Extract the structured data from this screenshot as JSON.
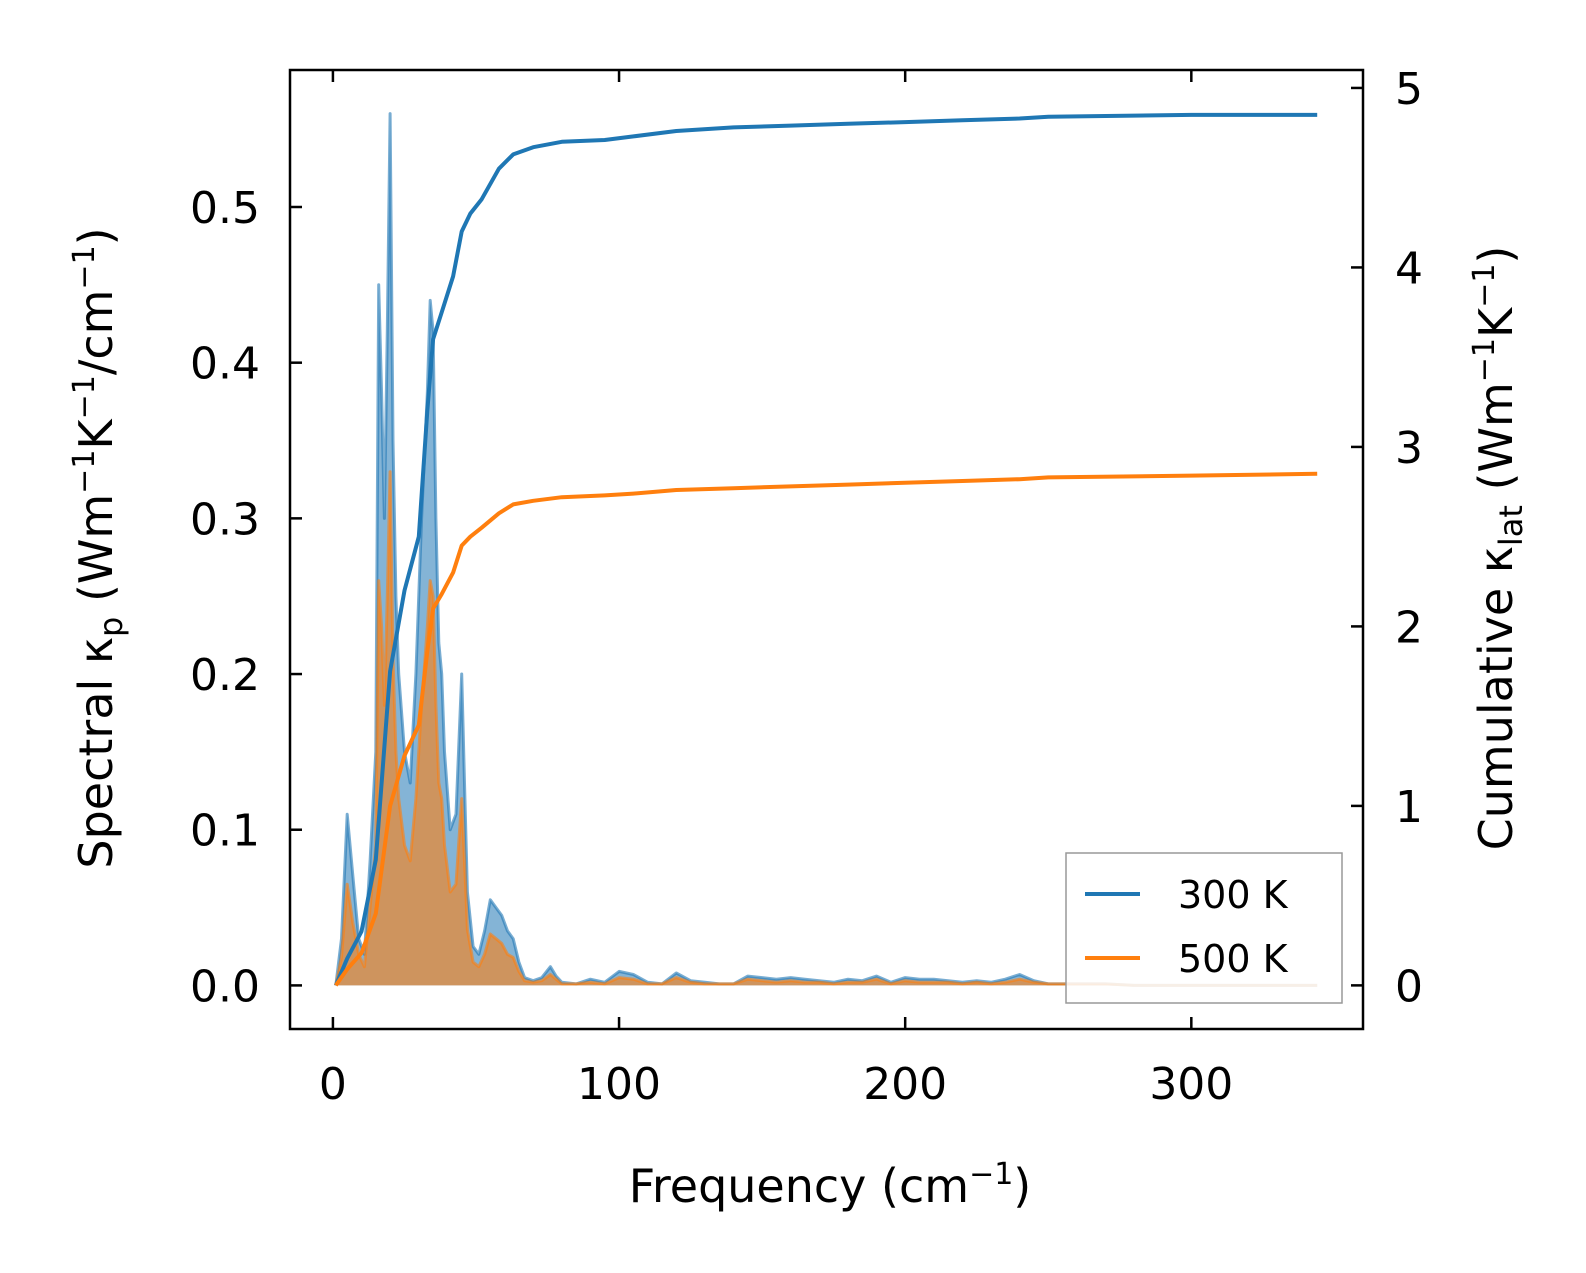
{
  "chart_data": {
    "type": "line",
    "subtypes": [
      "area",
      "line"
    ],
    "xlabel": "Frequency (cm⁻¹)",
    "ylabel_left": "Spectral κp (Wm⁻¹K⁻¹/cm⁻¹)",
    "ylabel_right": "Cumulative κlat (Wm⁻¹K⁻¹)",
    "xlim": [
      -15,
      360
    ],
    "ylim_left": [
      -0.028,
      0.588
    ],
    "ylim_right": [
      -0.243,
      5.1
    ],
    "x_ticks": [
      0,
      100,
      200,
      300
    ],
    "x_tick_labels": [
      "0",
      "100",
      "200",
      "300"
    ],
    "y_left_ticks": [
      0.0,
      0.1,
      0.2,
      0.3,
      0.4,
      0.5
    ],
    "y_left_tick_labels": [
      "0.0",
      "0.1",
      "0.2",
      "0.3",
      "0.4",
      "0.5"
    ],
    "y_right_ticks": [
      0,
      1,
      2,
      3,
      4,
      5
    ],
    "y_right_tick_labels": [
      "0",
      "1",
      "2",
      "3",
      "4",
      "5"
    ],
    "legend": {
      "position": "lower right",
      "entries": [
        "300 K",
        "500 K"
      ]
    },
    "colors": {
      "300K": "#1f77b4",
      "500K": "#ff7f0e"
    },
    "spectral": {
      "axis": "left",
      "x": [
        1,
        3,
        5,
        7,
        9,
        11,
        13,
        15,
        16,
        17,
        18,
        19,
        20,
        21,
        22,
        23,
        25,
        27,
        29,
        31,
        33,
        34,
        35,
        36,
        37,
        38,
        39,
        41,
        43,
        45,
        46,
        47,
        49,
        51,
        53,
        55,
        57,
        59,
        61,
        63,
        65,
        67,
        70,
        73,
        76,
        78,
        80,
        85,
        90,
        95,
        100,
        105,
        110,
        115,
        120,
        125,
        130,
        135,
        140,
        145,
        150,
        155,
        160,
        165,
        170,
        175,
        180,
        185,
        190,
        195,
        200,
        205,
        210,
        215,
        220,
        225,
        230,
        235,
        240,
        245,
        250,
        260,
        270,
        280,
        290,
        300,
        310,
        320,
        330,
        340,
        344
      ],
      "series": [
        {
          "name": "300 K",
          "values": [
            0.0,
            0.03,
            0.11,
            0.07,
            0.03,
            0.02,
            0.08,
            0.15,
            0.45,
            0.38,
            0.3,
            0.42,
            0.56,
            0.35,
            0.25,
            0.2,
            0.15,
            0.13,
            0.2,
            0.3,
            0.38,
            0.44,
            0.42,
            0.3,
            0.22,
            0.2,
            0.15,
            0.1,
            0.11,
            0.2,
            0.13,
            0.06,
            0.025,
            0.02,
            0.035,
            0.055,
            0.05,
            0.045,
            0.035,
            0.03,
            0.015,
            0.005,
            0.003,
            0.005,
            0.012,
            0.006,
            0.002,
            0.001,
            0.004,
            0.002,
            0.009,
            0.007,
            0.002,
            0.001,
            0.008,
            0.003,
            0.002,
            0.001,
            0.001,
            0.006,
            0.005,
            0.004,
            0.005,
            0.004,
            0.003,
            0.002,
            0.004,
            0.003,
            0.006,
            0.002,
            0.005,
            0.004,
            0.004,
            0.003,
            0.002,
            0.003,
            0.002,
            0.004,
            0.007,
            0.003,
            0.001,
            0.001,
            0.001,
            0.0,
            0.0,
            0.0,
            0.0,
            0.0,
            0.0,
            0.0,
            0.0
          ]
        },
        {
          "name": "500 K",
          "values": [
            0.0,
            0.018,
            0.065,
            0.04,
            0.02,
            0.012,
            0.05,
            0.09,
            0.26,
            0.23,
            0.18,
            0.25,
            0.33,
            0.21,
            0.15,
            0.12,
            0.09,
            0.08,
            0.12,
            0.18,
            0.23,
            0.26,
            0.25,
            0.18,
            0.13,
            0.12,
            0.09,
            0.06,
            0.065,
            0.12,
            0.08,
            0.036,
            0.015,
            0.012,
            0.02,
            0.033,
            0.03,
            0.027,
            0.02,
            0.018,
            0.009,
            0.003,
            0.002,
            0.003,
            0.007,
            0.004,
            0.001,
            0.001,
            0.002,
            0.001,
            0.005,
            0.004,
            0.001,
            0.001,
            0.005,
            0.002,
            0.001,
            0.001,
            0.001,
            0.004,
            0.003,
            0.002,
            0.003,
            0.002,
            0.002,
            0.001,
            0.002,
            0.002,
            0.004,
            0.001,
            0.003,
            0.002,
            0.002,
            0.002,
            0.001,
            0.002,
            0.001,
            0.002,
            0.004,
            0.002,
            0.001,
            0.001,
            0.001,
            0.0,
            0.0,
            0.0,
            0.0,
            0.0,
            0.0,
            0.0,
            0.0
          ]
        }
      ]
    },
    "cumulative": {
      "axis": "right",
      "x": [
        1,
        5,
        10,
        15,
        20,
        25,
        30,
        33,
        35,
        38,
        42,
        45,
        48,
        52,
        58,
        63,
        70,
        80,
        95,
        105,
        120,
        140,
        160,
        180,
        200,
        220,
        240,
        250,
        300,
        344
      ],
      "series": [
        {
          "name": "300 K",
          "values": [
            0.0,
            0.15,
            0.3,
            0.7,
            1.75,
            2.2,
            2.5,
            3.2,
            3.6,
            3.75,
            3.95,
            4.2,
            4.3,
            4.38,
            4.55,
            4.63,
            4.67,
            4.7,
            4.71,
            4.73,
            4.76,
            4.78,
            4.79,
            4.8,
            4.81,
            4.82,
            4.83,
            4.84,
            4.85,
            4.85
          ]
        },
        {
          "name": "500 K",
          "values": [
            0.0,
            0.09,
            0.18,
            0.4,
            1.0,
            1.28,
            1.45,
            1.86,
            2.1,
            2.18,
            2.3,
            2.45,
            2.5,
            2.55,
            2.63,
            2.68,
            2.7,
            2.72,
            2.73,
            2.74,
            2.76,
            2.77,
            2.78,
            2.79,
            2.8,
            2.81,
            2.82,
            2.83,
            2.84,
            2.85
          ]
        }
      ]
    }
  }
}
